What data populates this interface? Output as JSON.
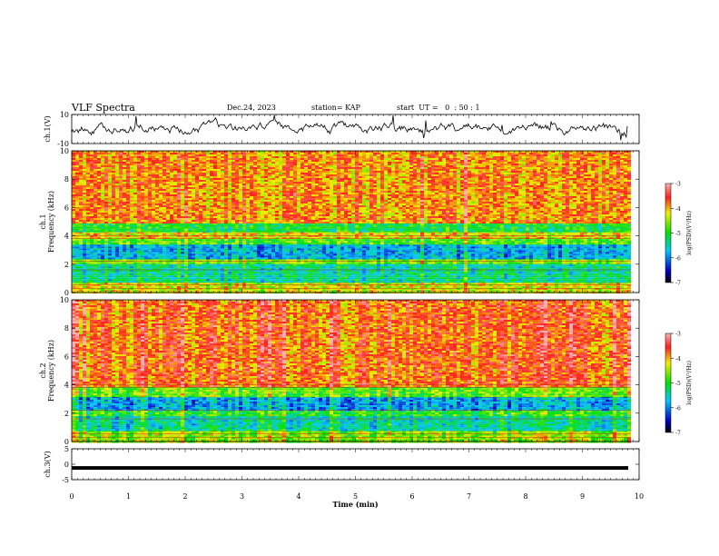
{
  "header": {
    "title": "VLF Spectra",
    "date": "Dec.24, 2023",
    "station": "station= KAP",
    "start_ut": "start  UT =   0  : 50 : 1"
  },
  "chart_data": [
    {
      "type": "line",
      "panel": "ch1-waveform",
      "ylabel": "ch.1(V)",
      "ylim": [
        -10,
        10
      ],
      "yticks": [
        "10",
        "-10"
      ],
      "xlim": [
        0,
        10
      ],
      "series_color": "#000000"
    },
    {
      "type": "heatmap",
      "panel": "ch1-spectrogram",
      "ylabel": "ch.1 Frequency (kHz)",
      "ylim": [
        0,
        10
      ],
      "yticks": [
        "0",
        "2",
        "4",
        "6",
        "8",
        "10"
      ],
      "xlim": [
        0,
        9.85
      ],
      "colorbar": {
        "label": "log(PSD)(V²/Hz)",
        "range": [
          -7,
          -3
        ],
        "ticks": [
          "-3",
          "-4",
          "-5",
          "-6",
          "-7"
        ]
      },
      "bands": [
        {
          "from": 0.0,
          "to": 0.7,
          "level": -4.3
        },
        {
          "from": 0.7,
          "to": 2.1,
          "level": -5.4
        },
        {
          "from": 2.1,
          "to": 2.4,
          "level": -4.6
        },
        {
          "from": 2.4,
          "to": 3.5,
          "level": -5.8
        },
        {
          "from": 3.5,
          "to": 3.9,
          "level": -4.8
        },
        {
          "from": 3.9,
          "to": 4.3,
          "level": -4.2
        },
        {
          "from": 4.3,
          "to": 4.9,
          "level": -5.1
        },
        {
          "from": 4.9,
          "to": 10.0,
          "level": -3.9
        }
      ]
    },
    {
      "type": "heatmap",
      "panel": "ch2-spectrogram",
      "ylabel": "ch.2 Frequency (kHz)",
      "ylim": [
        0,
        10
      ],
      "yticks": [
        "0",
        "2",
        "4",
        "6",
        "8",
        "10"
      ],
      "xlim": [
        0,
        9.85
      ],
      "colorbar": {
        "label": "log(PSD)(V²/Hz)",
        "range": [
          -7,
          -3
        ],
        "ticks": [
          "-3",
          "-4",
          "-5",
          "-6",
          "-7"
        ]
      },
      "bands": [
        {
          "from": 0.0,
          "to": 0.8,
          "level": -4.6
        },
        {
          "from": 0.8,
          "to": 1.9,
          "level": -5.5
        },
        {
          "from": 1.9,
          "to": 2.3,
          "level": -5.0
        },
        {
          "from": 2.3,
          "to": 3.2,
          "level": -5.9
        },
        {
          "from": 3.2,
          "to": 3.9,
          "level": -4.8
        },
        {
          "from": 3.9,
          "to": 10.0,
          "level": -3.8
        }
      ]
    },
    {
      "type": "line",
      "panel": "ch3-waveform",
      "ylabel": "ch.3(V)",
      "ylim": [
        -5,
        5
      ],
      "yticks": [
        "5",
        "0",
        "-5"
      ],
      "xlabel": "Time  (min)",
      "xlim": [
        0,
        10
      ],
      "xticks": [
        "0",
        "1",
        "2",
        "3",
        "4",
        "5",
        "6",
        "7",
        "8",
        "9",
        "10"
      ],
      "baseline": -1.2,
      "series_color": "#000000"
    }
  ]
}
